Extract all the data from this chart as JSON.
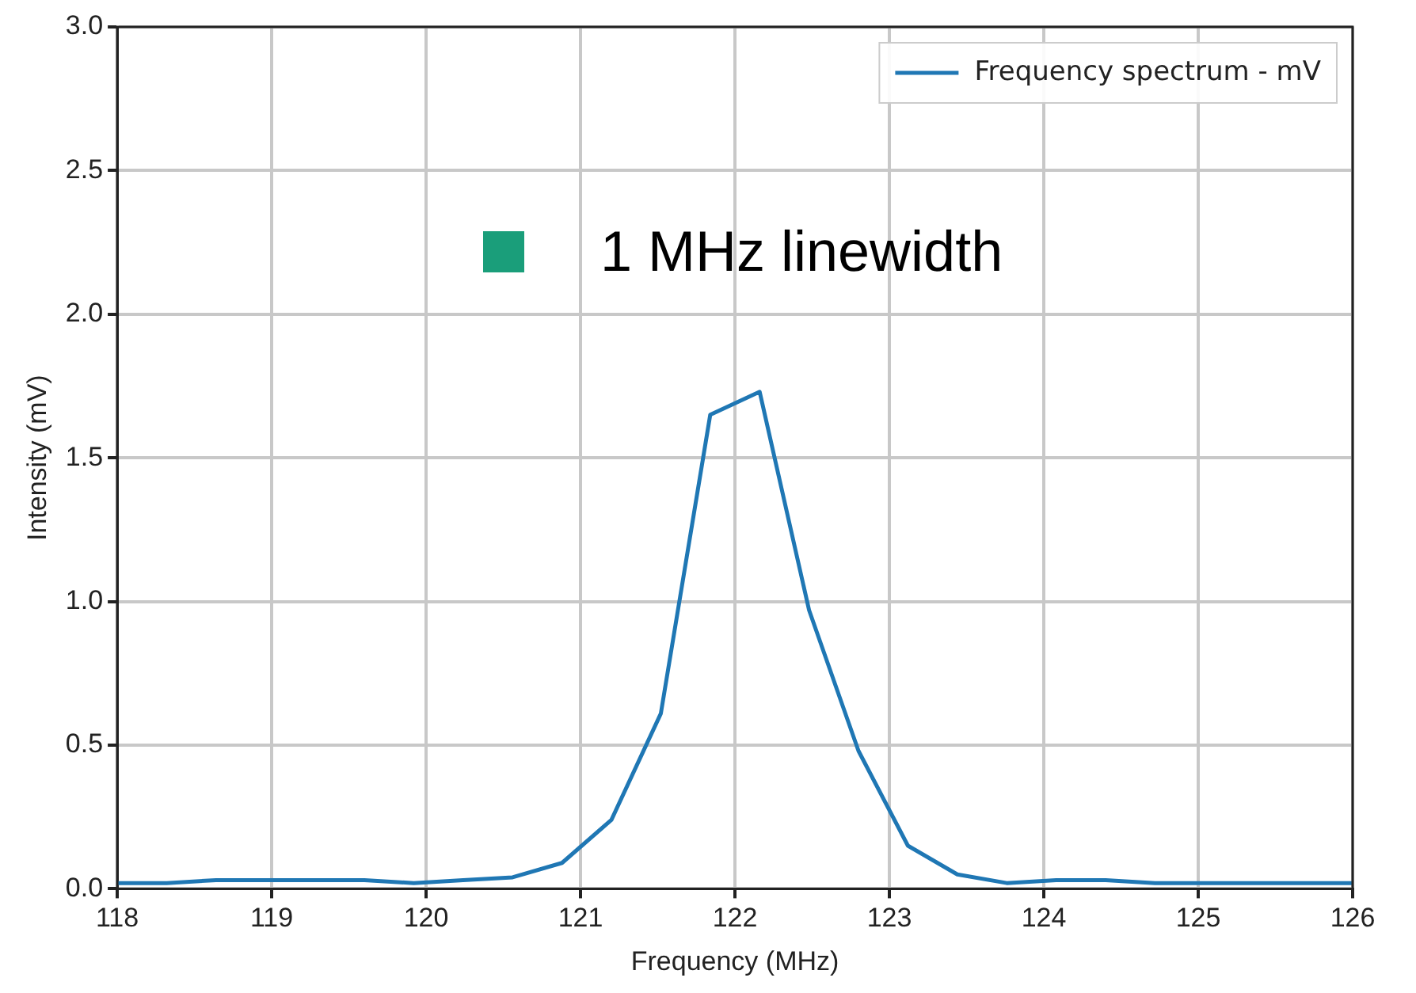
{
  "chart_data": {
    "type": "line",
    "xlabel": "Frequency (MHz)",
    "ylabel": "Intensity (mV)",
    "x": [
      118,
      118.32,
      118.64,
      118.96,
      119.28,
      119.6,
      119.92,
      120.24,
      120.56,
      120.88,
      121.2,
      121.52,
      121.84,
      122.16,
      122.48,
      122.8,
      123.12,
      123.44,
      123.76,
      124.08,
      124.4,
      124.72,
      125.04,
      125.36,
      125.68,
      126
    ],
    "series": [
      {
        "name": "Frequency spectrum - mV",
        "color": "#1f77b4",
        "values": [
          0.02,
          0.02,
          0.03,
          0.03,
          0.03,
          0.03,
          0.02,
          0.03,
          0.04,
          0.09,
          0.24,
          0.61,
          1.65,
          1.73,
          0.97,
          0.48,
          0.15,
          0.05,
          0.02,
          0.03,
          0.03,
          0.02,
          0.02,
          0.02,
          0.02,
          0.02
        ]
      }
    ],
    "xlim": [
      118,
      126
    ],
    "xticks": [
      118,
      119,
      120,
      121,
      122,
      123,
      124,
      125,
      126
    ],
    "ylim": [
      0,
      3
    ],
    "yticks": [
      {
        "value": 0,
        "label": "0.0"
      },
      0.5,
      {
        "value": 1,
        "label": "1.0"
      },
      1.5,
      {
        "value": 2,
        "label": "2.0"
      },
      2.5,
      {
        "value": 3,
        "label": "3.0"
      }
    ],
    "annotations": [
      "1 MHz linewidth"
    ],
    "grid": true,
    "legend": "top right",
    "marker": "none",
    "line_style": "solid"
  }
}
